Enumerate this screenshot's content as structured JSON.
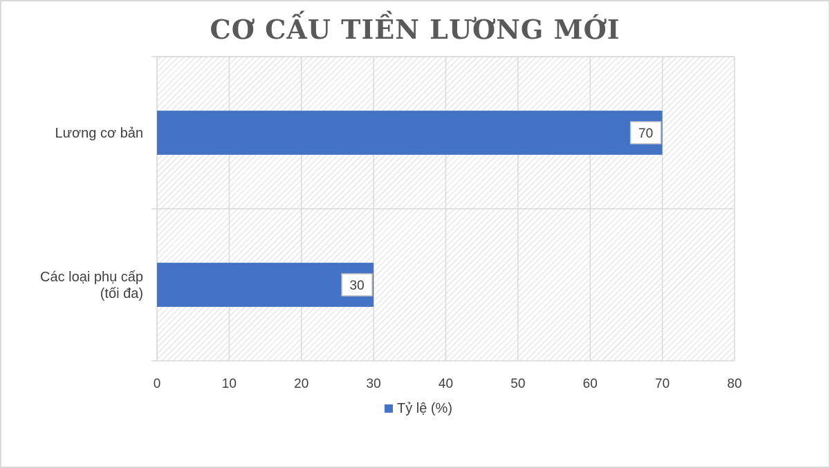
{
  "chart_data": {
    "type": "bar",
    "orientation": "horizontal",
    "title": "CƠ CẤU TIỀN LƯƠNG MỚI",
    "categories": [
      "Lương cơ bản",
      "Các loại phụ cấp (tối đa)"
    ],
    "category_lines": [
      [
        "Lương cơ bản"
      ],
      [
        "Các loại phụ cấp",
        "(tối đa)"
      ]
    ],
    "series": [
      {
        "name": "Tỷ lệ (%)",
        "values": [
          70,
          30
        ]
      }
    ],
    "data_labels": [
      "70",
      "30"
    ],
    "xlim": [
      0,
      80
    ],
    "xticks": [
      0,
      10,
      20,
      30,
      40,
      50,
      60,
      70,
      80
    ],
    "xtick_labels": [
      "0",
      "10",
      "20",
      "30",
      "40",
      "50",
      "60",
      "70",
      "80"
    ],
    "grid": true,
    "legend_position": "bottom",
    "colors": {
      "bar": "#4472c4",
      "grid": "#d9d9d9",
      "hatch": "#c8c8c8",
      "text": "#404040",
      "title": "#595959"
    }
  }
}
